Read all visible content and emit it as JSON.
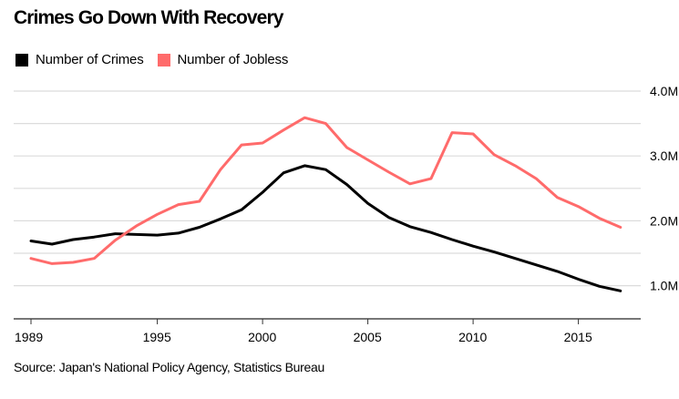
{
  "chart_data": {
    "type": "line",
    "title": "Crimes Go Down With Recovery",
    "xlabel": "",
    "ylabel": "",
    "x": [
      1989,
      1990,
      1991,
      1992,
      1993,
      1994,
      1995,
      1996,
      1997,
      1998,
      1999,
      2000,
      2001,
      2002,
      2003,
      2004,
      2005,
      2006,
      2007,
      2008,
      2009,
      2010,
      2011,
      2012,
      2013,
      2014,
      2015,
      2016,
      2017
    ],
    "series": [
      {
        "name": "Number of Crimes",
        "color": "#000000",
        "values": [
          1.69,
          1.64,
          1.71,
          1.75,
          1.8,
          1.79,
          1.78,
          1.81,
          1.9,
          2.03,
          2.17,
          2.44,
          2.74,
          2.85,
          2.79,
          2.56,
          2.27,
          2.05,
          1.91,
          1.82,
          1.71,
          1.61,
          1.52,
          1.42,
          1.32,
          1.22,
          1.1,
          0.99,
          0.92
        ]
      },
      {
        "name": "Number of Jobless",
        "color": "#FF6B6B",
        "values": [
          1.42,
          1.34,
          1.36,
          1.42,
          1.7,
          1.92,
          2.1,
          2.25,
          2.3,
          2.79,
          3.17,
          3.2,
          3.4,
          3.59,
          3.5,
          3.13,
          2.94,
          2.75,
          2.57,
          2.65,
          3.36,
          3.34,
          3.02,
          2.85,
          2.65,
          2.36,
          2.22,
          2.04,
          1.9
        ]
      }
    ],
    "units": "millions",
    "xlim": [
      1989,
      2018.5
    ],
    "ylim": [
      0.5,
      4.0
    ],
    "x_ticks": [
      1989,
      1995,
      2000,
      2005,
      2010,
      2015
    ],
    "x_tick_labels": [
      "1989",
      "1995",
      "2000",
      "2005",
      "2010",
      "2015"
    ],
    "y_ticks": [
      1.0,
      2.0,
      3.0,
      4.0
    ],
    "y_tick_labels": [
      "1.0M",
      "2.0M",
      "3.0M",
      "4.0M"
    ],
    "y_gridlines": [
      1.0,
      1.5,
      2.0,
      2.5,
      3.0,
      3.5,
      4.0
    ],
    "grid": true,
    "y_axis_side": "right",
    "legend": {
      "placement": "top-left",
      "entries": [
        "Number of Crimes",
        "Number of Jobless"
      ]
    },
    "source": "Source: Japan's National Policy Agency, Statistics Bureau"
  }
}
